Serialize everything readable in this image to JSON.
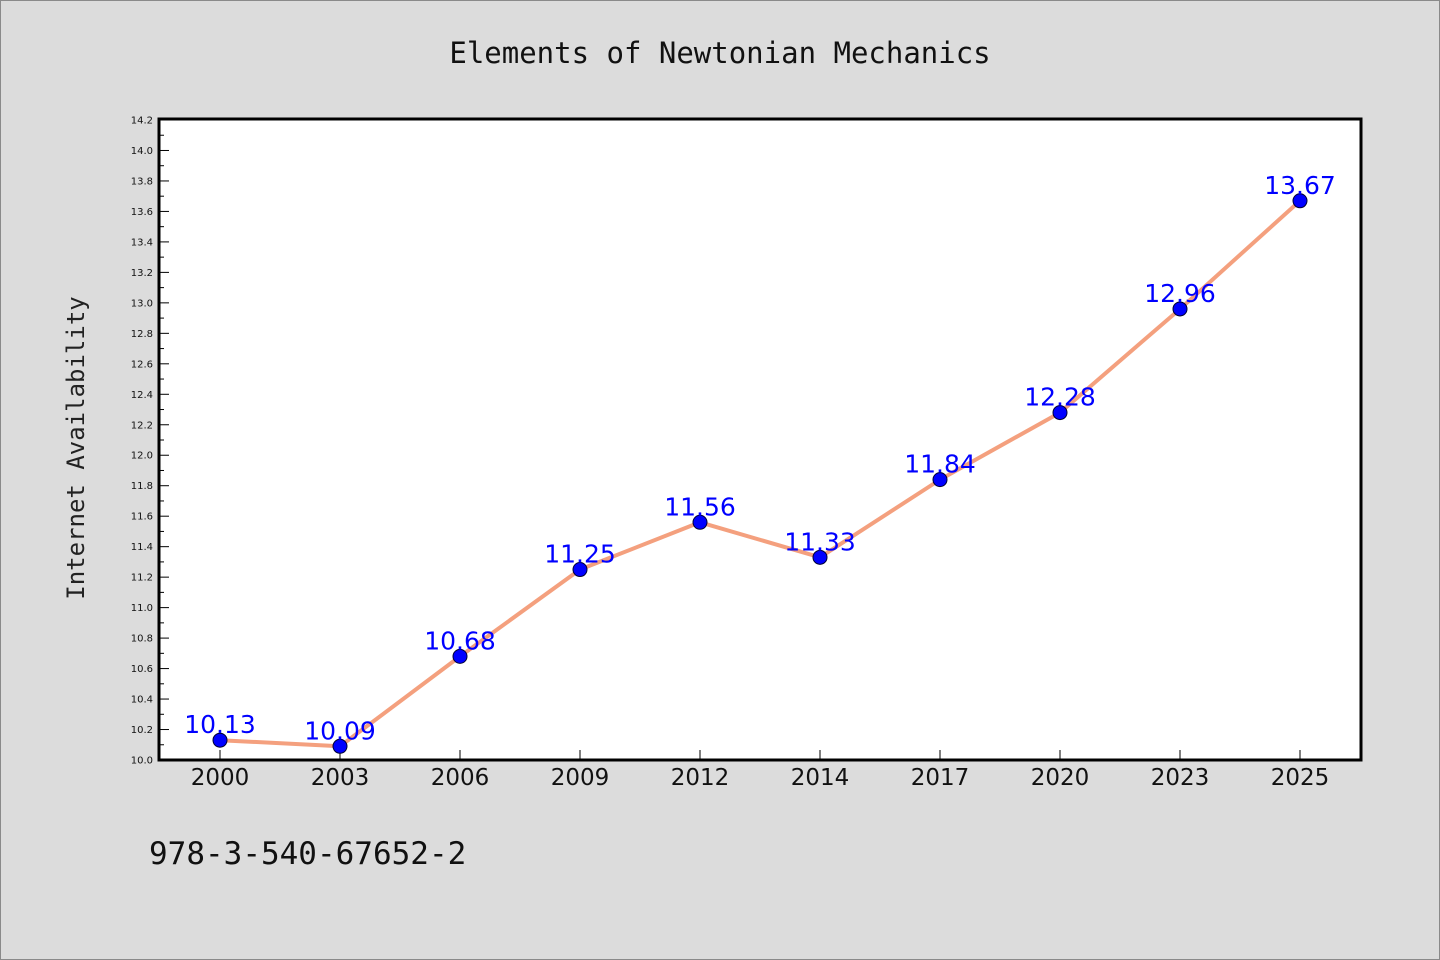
{
  "chart_data": {
    "type": "line",
    "title": "Elements of Newtonian Mechanics",
    "xlabel": "",
    "ylabel": "Internet Availability",
    "categories": [
      "2000",
      "2003",
      "2006",
      "2009",
      "2012",
      "2014",
      "2017",
      "2020",
      "2023",
      "2025"
    ],
    "series": [
      {
        "values": [
          10.13,
          10.09,
          10.68,
          11.25,
          11.56,
          11.33,
          11.84,
          12.28,
          12.96,
          13.67
        ],
        "line_color": "#f4a07e",
        "marker_color": "#0000ff"
      }
    ],
    "data_labels": [
      "10.13",
      "10.09",
      "10.68",
      "11.25",
      "11.56",
      "11.33",
      "11.84",
      "12.28",
      "12.96",
      "13.67"
    ],
    "ylim": [
      10.0,
      14.2
    ],
    "yticks": [
      "10.0",
      "10.2",
      "10.4",
      "10.6",
      "10.8",
      "11.0",
      "11.2",
      "11.4",
      "11.6",
      "11.8",
      "12.0",
      "12.2",
      "12.4",
      "12.6",
      "12.8",
      "13.0",
      "13.2",
      "13.4",
      "13.6",
      "13.8",
      "14.0",
      "14.2"
    ],
    "grid": false,
    "legend": "none"
  },
  "footer": {
    "text": "978-3-540-67652-2"
  }
}
